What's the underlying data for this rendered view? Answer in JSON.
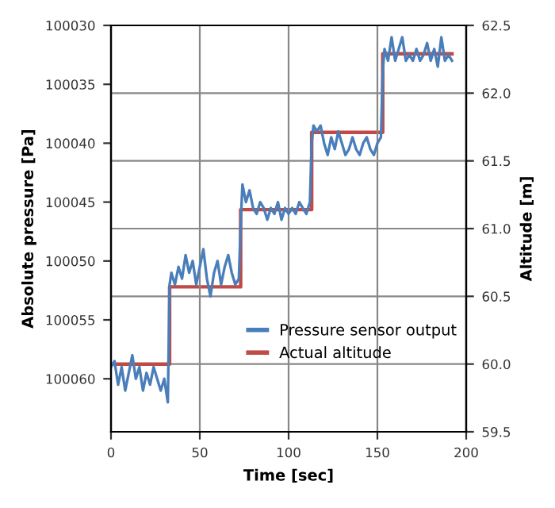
{
  "chart_data": {
    "type": "line",
    "xlabel": "Time [sec]",
    "ylabel": "Absolute pressure [Pa]",
    "y2label": "Altitude [m]",
    "xlim": [
      0,
      200
    ],
    "xticks": [
      0,
      50,
      100,
      150,
      200
    ],
    "ylim": [
      100064.5,
      100030
    ],
    "yticks": [
      100030,
      100035,
      100040,
      100045,
      100050,
      100055,
      100060
    ],
    "y2lim": [
      59.5,
      62.5
    ],
    "y2ticks": [
      {
        "value": 59.5,
        "label": "59.5"
      },
      {
        "value": 60,
        "label": "60.0"
      },
      {
        "value": 60.5,
        "label": "60.5"
      },
      {
        "value": 61,
        "label": "61.0"
      },
      {
        "value": 61.5,
        "label": "61.5"
      },
      {
        "value": 62,
        "label": "62.0"
      },
      {
        "value": 62.5,
        "label": "62.5"
      }
    ],
    "grid": true,
    "legend": "bottom",
    "line_style": "solid",
    "marker": "none",
    "series": [
      {
        "name": "Pressure sensor output",
        "color": "#4a7ebb",
        "x": [
          0,
          2,
          4,
          6,
          8,
          10,
          12,
          14,
          16,
          18,
          20,
          22,
          24,
          26,
          28,
          30,
          32,
          33,
          34,
          36,
          38,
          40,
          42,
          44,
          46,
          48,
          50,
          52,
          54,
          56,
          58,
          60,
          62,
          64,
          66,
          68,
          70,
          72,
          73,
          74,
          76,
          78,
          80,
          82,
          84,
          86,
          88,
          90,
          92,
          94,
          96,
          98,
          100,
          102,
          104,
          106,
          108,
          110,
          112,
          113,
          114,
          116,
          118,
          120,
          122,
          124,
          126,
          128,
          130,
          132,
          134,
          136,
          138,
          140,
          142,
          144,
          146,
          148,
          150,
          152,
          153,
          154,
          156,
          158,
          160,
          162,
          164,
          166,
          168,
          170,
          172,
          174,
          176,
          178,
          180,
          182,
          184,
          186,
          188,
          190,
          192
        ],
        "values": [
          100059,
          100058.5,
          100060.5,
          100059,
          100061,
          100059.5,
          100058,
          100060,
          100059,
          100061,
          100059.5,
          100060.5,
          100059,
          100060,
          100061,
          100060,
          100062,
          100052,
          100051,
          100052,
          100050.5,
          100051.5,
          100049.5,
          100051,
          100050,
          100052,
          100050.5,
          100049,
          100051.5,
          100053,
          100051,
          100050,
          100052,
          100050.5,
          100049.5,
          100051,
          100052,
          100051.5,
          100047,
          100043.5,
          100045,
          100044,
          100045.5,
          100046,
          100045,
          100045.5,
          100046.5,
          100045.5,
          100046,
          100045,
          100046.5,
          100045.5,
          100046,
          100045.5,
          100046,
          100045,
          100045.5,
          100046,
          100045,
          100040,
          100038.5,
          100039,
          100038.5,
          100040,
          100041,
          100039.5,
          100040.5,
          100039,
          100040,
          100041,
          100040.5,
          100039.5,
          100040.5,
          100041,
          100040,
          100039.5,
          100040.5,
          100041,
          100040,
          100039.5,
          100034,
          100032,
          100033,
          100031,
          100033,
          100032,
          100031,
          100033,
          100032.5,
          100033,
          100032,
          100033,
          100032.5,
          100031.5,
          100033,
          100032,
          100033.5,
          100031,
          100033,
          100032.5,
          100033
        ]
      },
      {
        "name": "Actual altitude",
        "color": "#be4b48",
        "axis": "y2",
        "x": [
          0,
          33,
          33,
          73,
          73,
          113,
          113,
          153,
          153,
          192
        ],
        "values": [
          60.0,
          60.0,
          60.57,
          60.57,
          61.14,
          61.14,
          61.71,
          61.71,
          62.29,
          62.29
        ]
      }
    ]
  }
}
